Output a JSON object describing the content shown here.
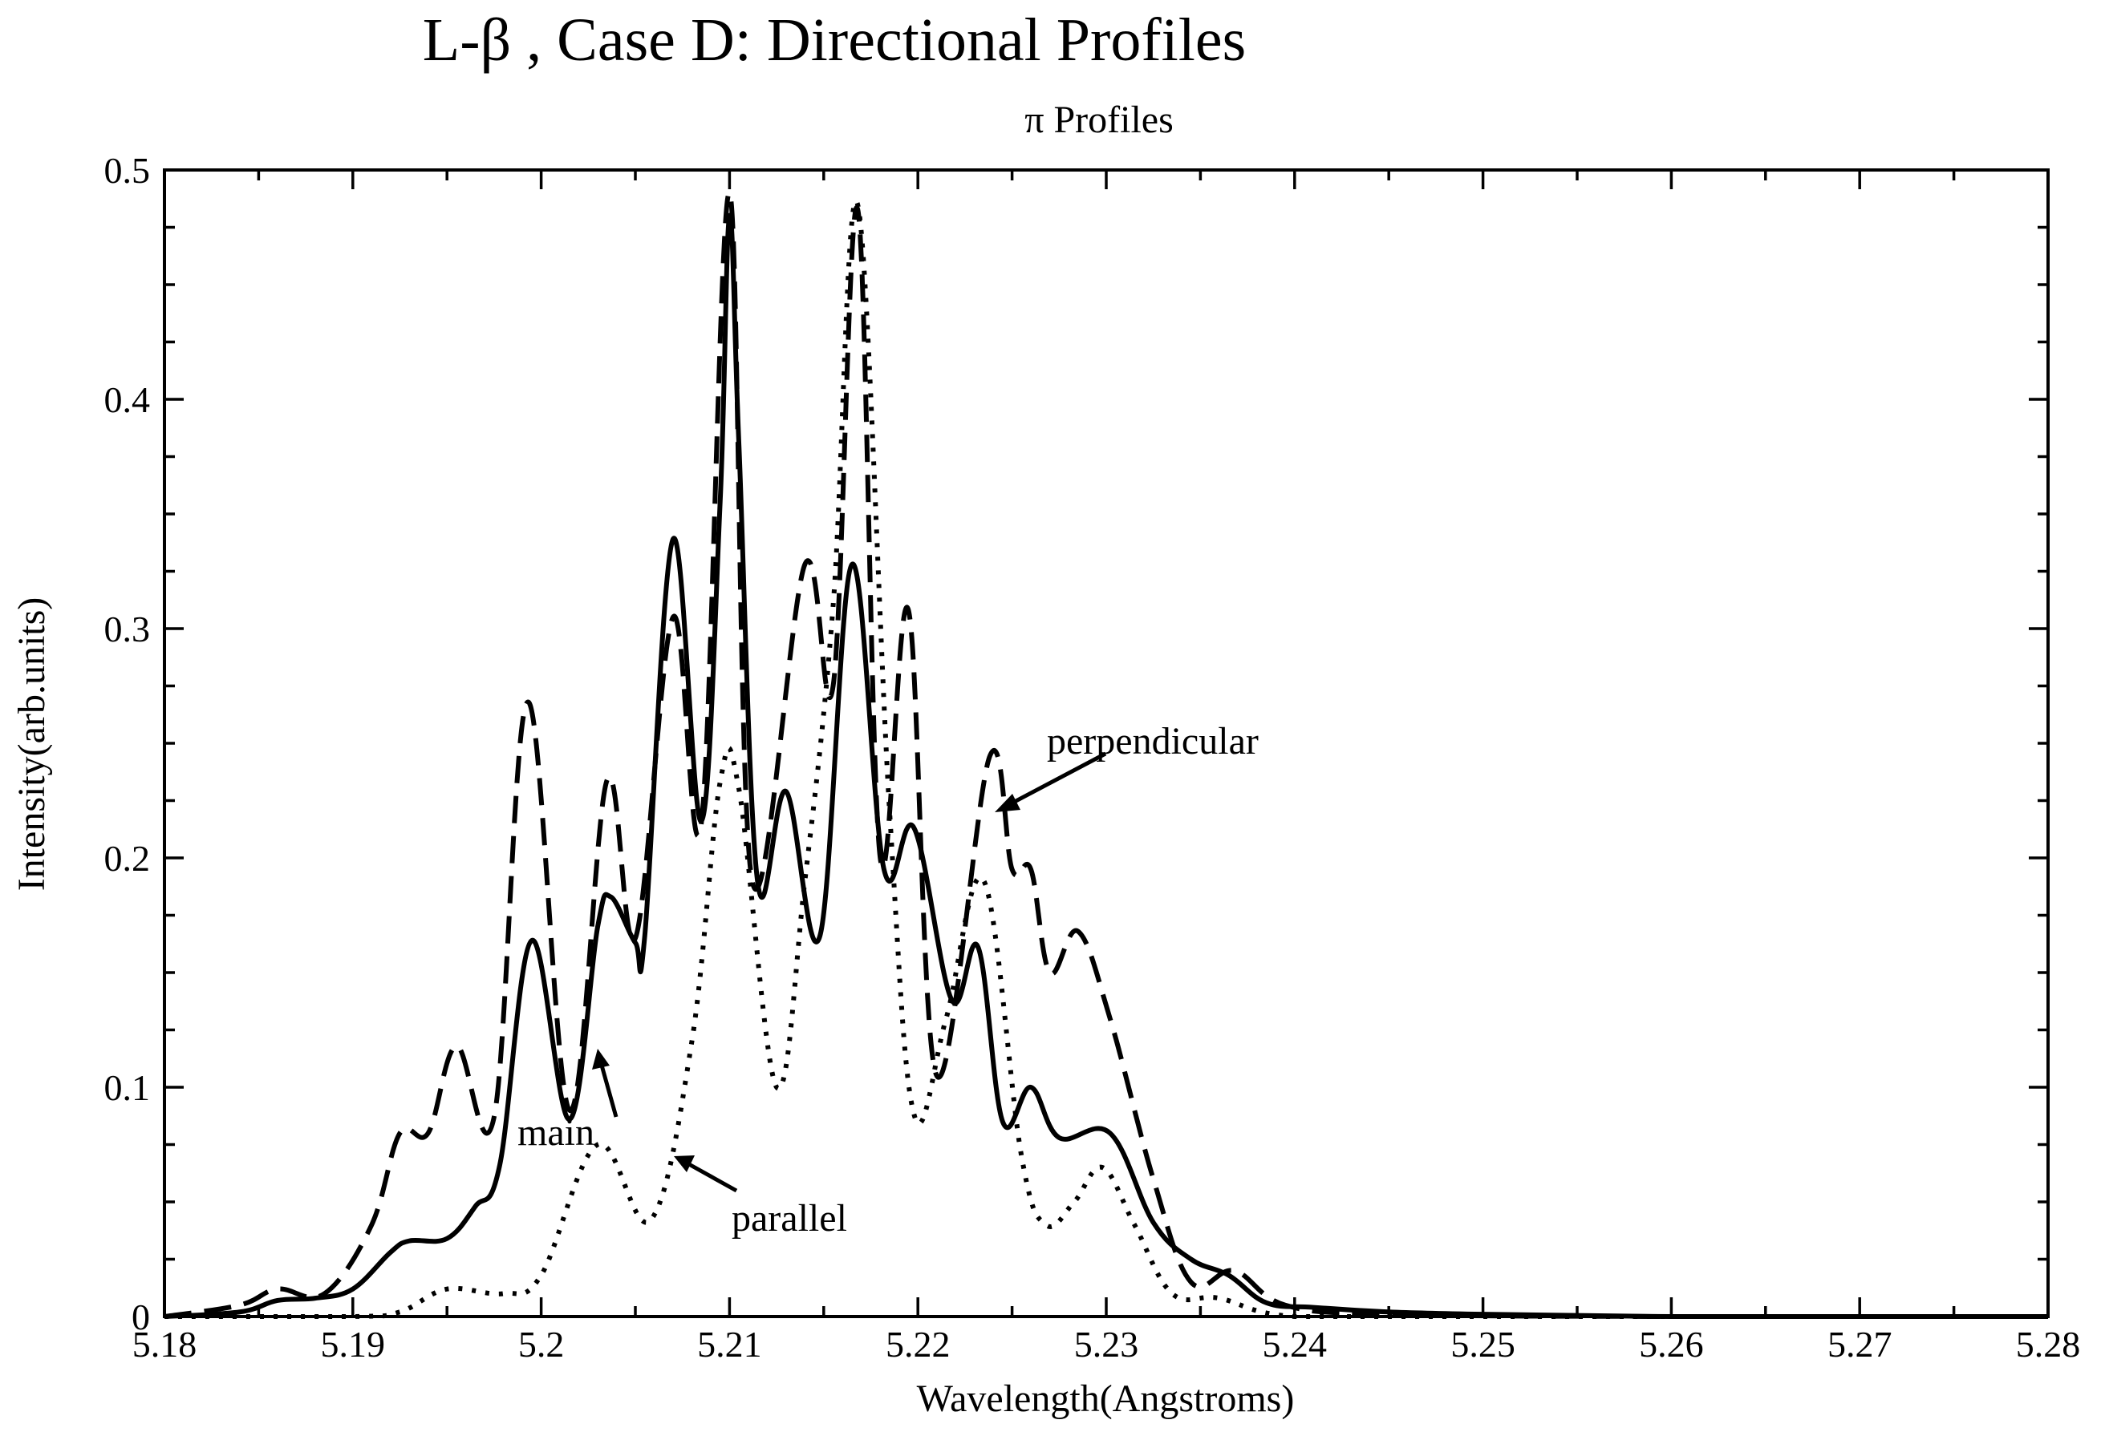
{
  "chart_data": {
    "type": "line",
    "title": "L-β , Case D: Directional Profiles",
    "subtitle": "π  Profiles",
    "xlabel": "Wavelength(Angstroms)",
    "ylabel": "Intensity(arb.units)",
    "xlim": [
      5.18,
      5.28
    ],
    "ylim": [
      0,
      0.5
    ],
    "x_ticks": [
      "5.18",
      "5.19",
      "5.2",
      "5.21",
      "5.22",
      "5.23",
      "5.24",
      "5.25",
      "5.26",
      "5.27",
      "5.28"
    ],
    "y_ticks": [
      "0",
      "0.1",
      "0.2",
      "0.3",
      "0.4",
      "0.5"
    ],
    "grid": false,
    "series": [
      {
        "name": "main",
        "style": "solid",
        "x": [
          5.18,
          5.184,
          5.186,
          5.188,
          5.19,
          5.192,
          5.193,
          5.195,
          5.1965,
          5.1978,
          5.1995,
          5.2015,
          5.203,
          5.2037,
          5.205,
          5.2055,
          5.207,
          5.2085,
          5.2095,
          5.21,
          5.2105,
          5.2115,
          5.213,
          5.2148,
          5.2165,
          5.2182,
          5.2198,
          5.2218,
          5.2232,
          5.2245,
          5.226,
          5.2275,
          5.2302,
          5.2325,
          5.2345,
          5.2365,
          5.2385,
          5.241,
          5.245,
          5.25,
          5.26,
          5.27,
          5.28
        ],
        "values": [
          0.0,
          0.002,
          0.007,
          0.008,
          0.012,
          0.028,
          0.033,
          0.034,
          0.048,
          0.066,
          0.164,
          0.086,
          0.17,
          0.183,
          0.163,
          0.166,
          0.339,
          0.216,
          0.355,
          0.48,
          0.38,
          0.189,
          0.229,
          0.166,
          0.328,
          0.195,
          0.213,
          0.138,
          0.161,
          0.085,
          0.1,
          0.078,
          0.08,
          0.041,
          0.025,
          0.018,
          0.006,
          0.004,
          0.002,
          0.001,
          0.0,
          0.0,
          0.0
        ]
      },
      {
        "name": "perpendicular",
        "style": "dashed",
        "x": [
          5.18,
          5.184,
          5.186,
          5.1885,
          5.191,
          5.1925,
          5.194,
          5.1955,
          5.1975,
          5.1993,
          5.2015,
          5.2035,
          5.205,
          5.207,
          5.2085,
          5.21,
          5.2112,
          5.214,
          5.2155,
          5.2168,
          5.218,
          5.2195,
          5.221,
          5.2238,
          5.225,
          5.226,
          5.227,
          5.2285,
          5.2302,
          5.2325,
          5.2345,
          5.2368,
          5.2395,
          5.245,
          5.26,
          5.28
        ],
        "values": [
          0.0,
          0.005,
          0.012,
          0.01,
          0.04,
          0.08,
          0.08,
          0.118,
          0.087,
          0.268,
          0.09,
          0.234,
          0.165,
          0.305,
          0.215,
          0.49,
          0.19,
          0.328,
          0.275,
          0.483,
          0.2,
          0.308,
          0.105,
          0.244,
          0.195,
          0.195,
          0.15,
          0.168,
          0.13,
          0.06,
          0.015,
          0.02,
          0.005,
          0.001,
          0.0,
          0.0
        ]
      },
      {
        "name": "parallel",
        "style": "dotted",
        "x": [
          5.18,
          5.19,
          5.1925,
          5.195,
          5.198,
          5.2,
          5.203,
          5.2058,
          5.208,
          5.2095,
          5.2105,
          5.2125,
          5.214,
          5.2155,
          5.2168,
          5.2185,
          5.2198,
          5.2215,
          5.2235,
          5.2255,
          5.2268,
          5.2283,
          5.2298,
          5.2315,
          5.2335,
          5.236,
          5.24,
          5.25,
          5.28
        ],
        "values": [
          0.0,
          0.0,
          0.002,
          0.012,
          0.01,
          0.018,
          0.075,
          0.042,
          0.12,
          0.233,
          0.23,
          0.1,
          0.19,
          0.31,
          0.485,
          0.22,
          0.088,
          0.13,
          0.19,
          0.07,
          0.04,
          0.05,
          0.065,
          0.04,
          0.01,
          0.008,
          0.0,
          0.0,
          0.0
        ]
      }
    ],
    "annotations": [
      {
        "text": "perpendicular",
        "series": "perpendicular"
      },
      {
        "text": "main",
        "series": "main"
      },
      {
        "text": "parallel",
        "series": "parallel"
      }
    ]
  }
}
